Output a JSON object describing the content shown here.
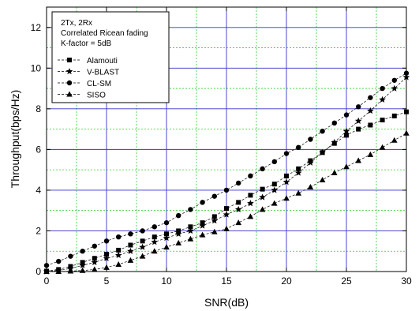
{
  "chart_data": {
    "type": "line",
    "xlabel": "SNR(dB)",
    "ylabel": "Throughput(bps/Hz)",
    "xlim": [
      0,
      30
    ],
    "ylim": [
      0,
      13
    ],
    "xticks": [
      0,
      5,
      10,
      15,
      20,
      25,
      30
    ],
    "yticks": [
      0,
      2,
      4,
      6,
      8,
      10,
      12
    ],
    "grid": {
      "major": true,
      "minor": true,
      "major_color": "#3333cc",
      "minor_color": "#33cc33"
    },
    "annotation_lines": [
      "2Tx, 2Rx",
      "Correlated Ricean fading",
      "K-factor = 5dB"
    ],
    "legend_position": "top-left",
    "x": [
      0,
      1,
      2,
      3,
      4,
      5,
      6,
      7,
      8,
      9,
      10,
      11,
      12,
      13,
      14,
      15,
      16,
      17,
      18,
      19,
      20,
      21,
      22,
      23,
      24,
      25,
      26,
      27,
      28,
      29,
      30
    ],
    "series": [
      {
        "name": "Alamouti",
        "marker": "square",
        "values": [
          0.02,
          0.1,
          0.25,
          0.45,
          0.65,
          0.85,
          1.05,
          1.3,
          1.5,
          1.7,
          1.85,
          2.0,
          2.2,
          2.4,
          2.7,
          3.1,
          3.4,
          3.75,
          4.05,
          4.3,
          4.7,
          5.05,
          5.45,
          5.85,
          6.3,
          6.7,
          7.0,
          7.2,
          7.45,
          7.65,
          7.85
        ]
      },
      {
        "name": "V-BLAST",
        "marker": "star",
        "values": [
          0.0,
          0.05,
          0.15,
          0.3,
          0.45,
          0.65,
          0.8,
          1.0,
          1.2,
          1.45,
          1.65,
          1.85,
          2.0,
          2.25,
          2.5,
          2.8,
          3.05,
          3.35,
          3.65,
          4.0,
          4.4,
          4.85,
          5.35,
          5.85,
          6.35,
          6.9,
          7.4,
          7.9,
          8.45,
          9.0,
          9.55
        ]
      },
      {
        "name": "CL-SM",
        "marker": "circle",
        "values": [
          0.3,
          0.5,
          0.75,
          1.0,
          1.25,
          1.5,
          1.7,
          1.85,
          2.0,
          2.2,
          2.4,
          2.75,
          3.05,
          3.4,
          3.7,
          4.0,
          4.35,
          4.7,
          5.05,
          5.4,
          5.8,
          6.1,
          6.5,
          6.9,
          7.3,
          7.7,
          8.1,
          8.55,
          9.0,
          9.4,
          9.75
        ]
      },
      {
        "name": "SISO",
        "marker": "triangle",
        "values": [
          0.0,
          0.0,
          0.02,
          0.05,
          0.1,
          0.2,
          0.35,
          0.55,
          0.75,
          1.0,
          1.2,
          1.4,
          1.6,
          1.8,
          1.95,
          2.1,
          2.4,
          2.7,
          3.05,
          3.35,
          3.6,
          3.85,
          4.15,
          4.5,
          4.85,
          5.15,
          5.45,
          5.75,
          6.1,
          6.45,
          6.8
        ]
      }
    ]
  }
}
